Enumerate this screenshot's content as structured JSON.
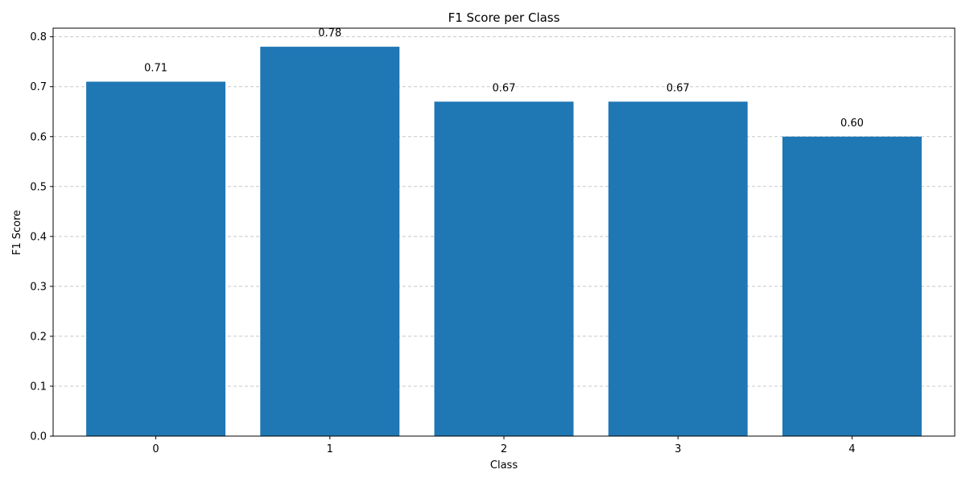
{
  "chart_data": {
    "type": "bar",
    "title": "F1 Score per Class",
    "xlabel": "Class",
    "ylabel": "F1 Score",
    "categories": [
      "0",
      "1",
      "2",
      "3",
      "4"
    ],
    "values": [
      0.71,
      0.78,
      0.67,
      0.67,
      0.6
    ],
    "data_labels": [
      "0.71",
      "0.78",
      "0.67",
      "0.67",
      "0.60"
    ],
    "ylim": [
      0,
      0.8172
    ],
    "yticks": [
      0.0,
      0.1,
      0.2,
      0.3,
      0.4,
      0.5,
      0.6,
      0.7,
      0.8
    ],
    "ytick_labels": [
      "0.0",
      "0.1",
      "0.2",
      "0.3",
      "0.4",
      "0.5",
      "0.6",
      "0.7",
      "0.8"
    ],
    "grid": {
      "axis": "y",
      "style": "dashed",
      "color": "#c8c8c8"
    },
    "bar_color": "#1f77b4"
  }
}
